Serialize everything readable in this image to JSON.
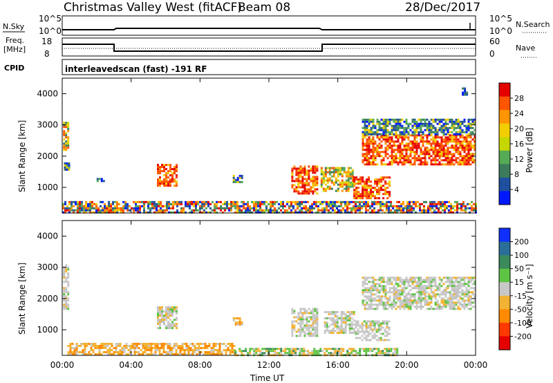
{
  "header": {
    "station": "Christmas Valley West (fitACF)",
    "beam": "Beam 08",
    "date": "28/Dec/2017"
  },
  "strips": {
    "nsky_label": "N.Sky",
    "nsky_ticks": [
      "10^5",
      "10^0"
    ],
    "nsearch_label": "N.Search",
    "nsearch_ticks": [
      "10^5",
      "10^0"
    ],
    "freq_label_1": "Freq.",
    "freq_label_2": "[MHz]",
    "freq_ticks": [
      "18",
      "8"
    ],
    "nave_label": "Nave",
    "nave_ticks": [
      "60",
      "0"
    ],
    "cpid_label": "CPID",
    "cpid_text": "interleavedscan (fast) -191 RF"
  },
  "chart_data": [
    {
      "type": "heatmap",
      "name": "power",
      "ylabel": "Slant Range [km]",
      "xlabel": "Time UT",
      "xlim": [
        0,
        24
      ],
      "ylim": [
        180,
        4500
      ],
      "yticks": [
        "1000",
        "2000",
        "3000",
        "4000"
      ],
      "colorbar_label": "Power [dB]",
      "colorbar_ticks": [
        "28",
        "24",
        "20",
        "16",
        "12",
        "8",
        "4"
      ],
      "colorbar_colors": [
        "#e50000",
        "#ff5500",
        "#ff9500",
        "#f2ce00",
        "#c6d600",
        "#55aa55",
        "#3c7b5c",
        "#1f4f9f",
        "#0018ff"
      ],
      "regions": [
        {
          "t0": 0.05,
          "t1": 0.35,
          "r0": 2200,
          "r1": 3100,
          "level": "mid"
        },
        {
          "t0": 0.1,
          "t1": 0.4,
          "r0": 1600,
          "r1": 1800,
          "level": "low"
        },
        {
          "t0": 2.0,
          "t1": 2.4,
          "r0": 1220,
          "r1": 1300,
          "level": "low"
        },
        {
          "t0": 5.5,
          "t1": 6.6,
          "r0": 1050,
          "r1": 1750,
          "level": "high"
        },
        {
          "t0": 9.9,
          "t1": 10.5,
          "r0": 1180,
          "r1": 1400,
          "level": "low"
        },
        {
          "t0": 13.3,
          "t1": 14.8,
          "r0": 800,
          "r1": 1700,
          "level": "high"
        },
        {
          "t0": 15.0,
          "t1": 16.9,
          "r0": 900,
          "r1": 1650,
          "level": "mid"
        },
        {
          "t0": 16.9,
          "t1": 19.0,
          "r0": 680,
          "r1": 1350,
          "level": "high"
        },
        {
          "t0": 17.4,
          "t1": 24.0,
          "r0": 1750,
          "r1": 2700,
          "level": "high"
        },
        {
          "t0": 17.4,
          "t1": 24.0,
          "r0": 2700,
          "r1": 3200,
          "level": "low"
        },
        {
          "t0": 23.2,
          "t1": 23.5,
          "r0": 4000,
          "r1": 4200,
          "level": "low"
        },
        {
          "t0": 0.0,
          "t1": 24.0,
          "r0": 220,
          "r1": 560,
          "level": "groundscatter"
        }
      ]
    },
    {
      "type": "heatmap",
      "name": "velocity",
      "ylabel": "Slant Range [km]",
      "xlabel": "Time UT",
      "xlim": [
        0,
        24
      ],
      "ylim": [
        180,
        4500
      ],
      "yticks": [
        "1000",
        "2000",
        "3000",
        "4000"
      ],
      "xticks": [
        "00:00",
        "04:00",
        "08:00",
        "12:00",
        "16:00",
        "20:00",
        "00:00"
      ],
      "colorbar_label": "Velocity [m s⁻¹]",
      "colorbar_ticks": [
        "200",
        "100",
        "50",
        "15",
        "-15",
        "-50",
        "-100",
        "-200"
      ],
      "colorbar_colors": [
        "#1030ff",
        "#2a6e9a",
        "#3a8a5c",
        "#5ec444",
        "#c8c8c8",
        "#f2b233",
        "#ff8a00",
        "#ff3a00",
        "#e50000"
      ],
      "regions": [
        {
          "t0": 0.05,
          "t1": 0.35,
          "r0": 1700,
          "r1": 3100,
          "level": "gray"
        },
        {
          "t0": 5.5,
          "t1": 6.7,
          "r0": 1050,
          "r1": 1750,
          "level": "gray"
        },
        {
          "t0": 9.9,
          "t1": 10.5,
          "r0": 1150,
          "r1": 1400,
          "level": "orange"
        },
        {
          "t0": 13.3,
          "t1": 14.8,
          "r0": 800,
          "r1": 1700,
          "level": "gray"
        },
        {
          "t0": 15.2,
          "t1": 16.9,
          "r0": 900,
          "r1": 1600,
          "level": "gray"
        },
        {
          "t0": 17.0,
          "t1": 19.0,
          "r0": 700,
          "r1": 1300,
          "level": "gray"
        },
        {
          "t0": 17.4,
          "t1": 24.0,
          "r0": 1700,
          "r1": 2700,
          "level": "gray"
        },
        {
          "t0": 0.3,
          "t1": 10.0,
          "r0": 220,
          "r1": 580,
          "level": "orange"
        },
        {
          "t0": 10.0,
          "t1": 19.5,
          "r0": 220,
          "r1": 420,
          "level": "green"
        }
      ]
    }
  ]
}
